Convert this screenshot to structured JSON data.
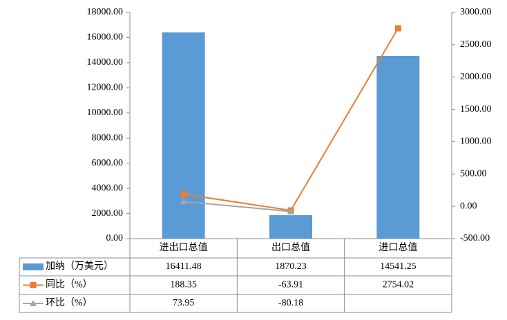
{
  "chart_data": {
    "type": "bar",
    "categories": [
      "进出口总值",
      "出口总值",
      "进口总值"
    ],
    "series": [
      {
        "name": "加纳（万美元）",
        "type": "bar",
        "color": "#5b9bd5",
        "values": [
          16411.48,
          1870.23,
          14541.25
        ]
      },
      {
        "name": "同比（%）",
        "type": "line",
        "axis": "y2",
        "color": "#ed7d31",
        "marker": "square",
        "values": [
          188.35,
          -63.91,
          2754.02
        ]
      },
      {
        "name": "环比（%）",
        "type": "line",
        "axis": "y2",
        "color": "#a5a5a5",
        "marker": "triangle",
        "values": [
          73.95,
          -80.18,
          null
        ]
      }
    ],
    "ylim": [
      0,
      18000
    ],
    "yticks": [
      {
        "value": 0,
        "label": "0.00"
      },
      {
        "value": 2000,
        "label": "2000.00"
      },
      {
        "value": 4000,
        "label": "4000.00"
      },
      {
        "value": 6000,
        "label": "6000.00"
      },
      {
        "value": 8000,
        "label": "8000.00"
      },
      {
        "value": 10000,
        "label": "10000.00"
      },
      {
        "value": 12000,
        "label": "12000.00"
      },
      {
        "value": 14000,
        "label": "14000.00"
      },
      {
        "value": 16000,
        "label": "16000.00"
      },
      {
        "value": 18000,
        "label": "18000.00"
      }
    ],
    "y2lim": [
      -500,
      3000
    ],
    "y2ticks": [
      {
        "value": -500,
        "label": "-500.00"
      },
      {
        "value": 0,
        "label": "0.00"
      },
      {
        "value": 500,
        "label": "500.00"
      },
      {
        "value": 1000,
        "label": "1000.00"
      },
      {
        "value": 1500,
        "label": "1500.00"
      },
      {
        "value": 2000,
        "label": "2000.00"
      },
      {
        "value": 2500,
        "label": "2500.00"
      },
      {
        "value": 3000,
        "label": "3000.00"
      }
    ],
    "grid": false
  }
}
